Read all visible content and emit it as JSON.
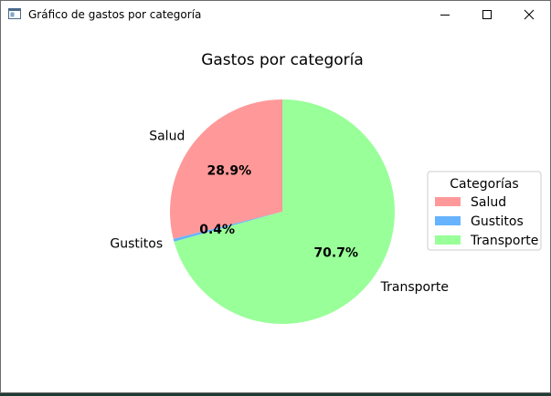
{
  "window": {
    "title": "Gráfico de gastos por categoría"
  },
  "controls": {
    "minimize_icon": "minimize-icon",
    "maximize_icon": "maximize-icon",
    "close_icon": "close-icon"
  },
  "chart_data": {
    "type": "pie",
    "title": "Gastos por categoría",
    "labels": [
      "Salud",
      "Gustitos",
      "Transporte"
    ],
    "values": [
      28.9,
      0.4,
      70.7
    ],
    "percent_labels": [
      "28.9%",
      "0.4%",
      "70.7%"
    ],
    "colors": [
      "#ff9999",
      "#66b3ff",
      "#99ff99"
    ],
    "legend": {
      "title": "Categorías",
      "entries": [
        "Salud",
        "Gustitos",
        "Transporte"
      ],
      "placement": "center-right"
    }
  }
}
